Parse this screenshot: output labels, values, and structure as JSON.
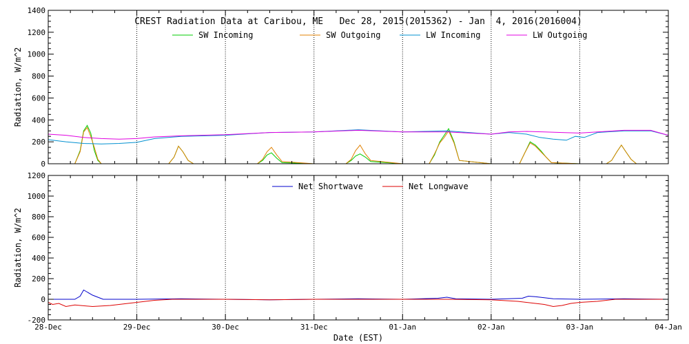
{
  "chart_data": [
    {
      "type": "line",
      "title": "CREST Radiation Data at Caribou, ME   Dec 28, 2015(2015362) - Jan  4, 2016(2016004)",
      "ylabel": "Radiation, W/m^2",
      "xlabel": "",
      "ylim": [
        0,
        1400
      ],
      "yticks": [
        "0",
        "200",
        "400",
        "600",
        "800",
        "1000",
        "1200",
        "1400"
      ],
      "xlim": [
        0,
        7
      ],
      "grid": true,
      "legend": "top",
      "series": [
        {
          "name": "SW Incoming",
          "color": "#00cc00",
          "x": [
            0,
            0.3,
            0.36,
            0.4,
            0.44,
            0.48,
            0.52,
            0.56,
            0.6,
            1,
            1.36,
            1.42,
            1.47,
            1.52,
            1.58,
            1.64,
            2,
            2.36,
            2.42,
            2.47,
            2.52,
            2.58,
            2.64,
            3,
            3.36,
            3.42,
            3.47,
            3.52,
            3.58,
            3.64,
            4,
            4.3,
            4.36,
            4.42,
            4.47,
            4.52,
            4.58,
            4.64,
            5,
            5.32,
            5.38,
            5.44,
            5.5,
            5.56,
            5.62,
            5.68,
            6,
            6.3,
            6.36,
            6.42,
            6.47,
            6.52,
            6.58,
            6.64,
            7
          ],
          "y": [
            0,
            0,
            120,
            300,
            350,
            280,
            120,
            30,
            0,
            0,
            0,
            60,
            160,
            110,
            30,
            0,
            0,
            0,
            30,
            80,
            100,
            50,
            10,
            0,
            0,
            30,
            70,
            90,
            60,
            20,
            0,
            0,
            80,
            200,
            260,
            320,
            200,
            30,
            0,
            0,
            100,
            200,
            170,
            120,
            60,
            10,
            0,
            0,
            30,
            110,
            170,
            110,
            40,
            0,
            0
          ]
        },
        {
          "name": "SW Outgoing",
          "color": "#e08000",
          "x": [
            0,
            0.3,
            0.36,
            0.4,
            0.44,
            0.48,
            0.52,
            0.56,
            0.6,
            1,
            1.36,
            1.42,
            1.47,
            1.52,
            1.58,
            1.64,
            2,
            2.36,
            2.42,
            2.47,
            2.52,
            2.58,
            2.64,
            3,
            3.36,
            3.42,
            3.47,
            3.52,
            3.58,
            3.64,
            4,
            4.3,
            4.36,
            4.42,
            4.47,
            4.52,
            4.58,
            4.64,
            5,
            5.32,
            5.38,
            5.44,
            5.5,
            5.56,
            5.62,
            5.68,
            6,
            6.3,
            6.36,
            6.42,
            6.47,
            6.52,
            6.58,
            6.64,
            7
          ],
          "y": [
            0,
            0,
            110,
            290,
            330,
            250,
            150,
            40,
            0,
            0,
            0,
            60,
            160,
            110,
            30,
            0,
            0,
            0,
            40,
            110,
            150,
            80,
            20,
            0,
            0,
            40,
            120,
            170,
            90,
            30,
            0,
            0,
            90,
            190,
            240,
            300,
            190,
            30,
            0,
            0,
            100,
            190,
            160,
            110,
            60,
            10,
            0,
            0,
            30,
            110,
            170,
            110,
            40,
            0,
            0
          ]
        },
        {
          "name": "LW Incoming",
          "color": "#0090d0",
          "x": [
            0,
            0.2,
            0.4,
            0.6,
            0.8,
            1,
            1.2,
            1.5,
            2,
            2.5,
            3,
            3.5,
            4,
            4.5,
            5,
            5.2,
            5.4,
            5.55,
            5.7,
            5.85,
            5.95,
            6.05,
            6.2,
            6.5,
            6.8,
            7
          ],
          "y": [
            220,
            200,
            185,
            180,
            185,
            195,
            230,
            250,
            260,
            285,
            290,
            310,
            290,
            300,
            270,
            285,
            270,
            240,
            225,
            215,
            250,
            240,
            285,
            300,
            300,
            260
          ]
        },
        {
          "name": "LW Outgoing",
          "color": "#e000e0",
          "x": [
            0,
            0.2,
            0.4,
            0.6,
            0.8,
            1,
            1.2,
            1.5,
            2,
            2.5,
            3,
            3.5,
            4,
            4.5,
            5,
            5.2,
            5.4,
            5.6,
            5.8,
            6,
            6.2,
            6.5,
            6.8,
            7
          ],
          "y": [
            270,
            260,
            240,
            230,
            225,
            230,
            245,
            255,
            265,
            285,
            290,
            305,
            290,
            290,
            270,
            290,
            295,
            290,
            285,
            280,
            290,
            305,
            305,
            260
          ]
        }
      ]
    },
    {
      "type": "line",
      "title": "",
      "ylabel": "Radiation, W/m^2",
      "xlabel": "Date (EST)",
      "ylim": [
        -200,
        1200
      ],
      "yticks": [
        "-200",
        "0",
        "200",
        "400",
        "600",
        "800",
        "1000",
        "1200"
      ],
      "xlim": [
        0,
        7
      ],
      "categories": [
        "28-Dec",
        "29-Dec",
        "30-Dec",
        "31-Dec",
        "01-Jan",
        "02-Jan",
        "03-Jan",
        "04-Jan"
      ],
      "grid": true,
      "legend": "top",
      "series": [
        {
          "name": "Net Shortwave",
          "color": "#0000cc",
          "x": [
            0,
            0.3,
            0.36,
            0.4,
            0.44,
            0.5,
            0.56,
            0.62,
            1,
            1.5,
            2,
            2.5,
            3,
            3.5,
            4,
            4.4,
            4.5,
            4.6,
            5,
            5.35,
            5.42,
            5.5,
            5.6,
            5.7,
            6,
            6.5,
            7
          ],
          "y": [
            0,
            0,
            30,
            90,
            70,
            40,
            20,
            0,
            0,
            5,
            0,
            -5,
            0,
            5,
            0,
            10,
            20,
            5,
            0,
            10,
            30,
            25,
            15,
            5,
            0,
            5,
            0
          ]
        },
        {
          "name": "Net Longwave",
          "color": "#dd0000",
          "x": [
            0,
            0.05,
            0.12,
            0.2,
            0.3,
            0.5,
            0.7,
            0.9,
            1,
            1.2,
            1.4,
            2,
            2.5,
            3,
            3.5,
            4,
            4.5,
            5,
            5.3,
            5.5,
            5.6,
            5.7,
            5.8,
            5.9,
            6,
            6.2,
            6.4,
            6.6,
            7
          ],
          "y": [
            -30,
            -50,
            -40,
            -70,
            -55,
            -70,
            -60,
            -40,
            -30,
            -10,
            0,
            0,
            -5,
            0,
            0,
            0,
            0,
            -5,
            -20,
            -40,
            -50,
            -70,
            -60,
            -40,
            -30,
            -20,
            0,
            0,
            0
          ]
        }
      ]
    }
  ]
}
